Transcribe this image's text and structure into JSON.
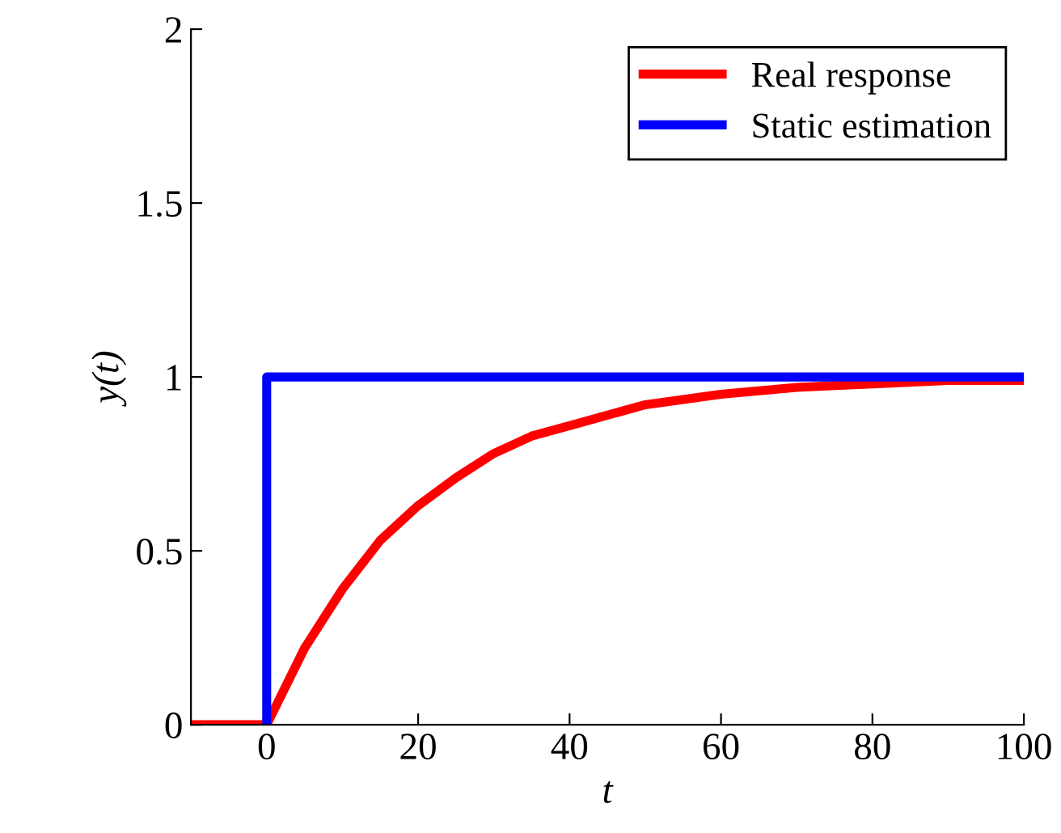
{
  "chart_data": {
    "type": "line",
    "xlabel": "t",
    "ylabel": "y(t)",
    "xlim": [
      -10,
      100
    ],
    "ylim": [
      0,
      2
    ],
    "xticks": [
      0,
      20,
      40,
      60,
      80,
      100
    ],
    "yticks": [
      0,
      0.5,
      1,
      1.5,
      2
    ],
    "legend": "top right",
    "grid": false,
    "marker": "none",
    "line_style": "solid",
    "series": [
      {
        "name": "Real response",
        "color": "#ff0000",
        "x": [
          -10,
          0,
          5,
          10,
          15,
          20,
          25,
          30,
          35,
          40,
          50,
          60,
          70,
          80,
          90,
          100
        ],
        "values": [
          0,
          0,
          0.22,
          0.39,
          0.53,
          0.63,
          0.71,
          0.78,
          0.83,
          0.86,
          0.92,
          0.95,
          0.97,
          0.98,
          0.99,
          0.99
        ]
      },
      {
        "name": "Static estimation",
        "color": "#0000ff",
        "x": [
          0,
          0,
          100
        ],
        "values": [
          0,
          1,
          1
        ]
      }
    ]
  }
}
